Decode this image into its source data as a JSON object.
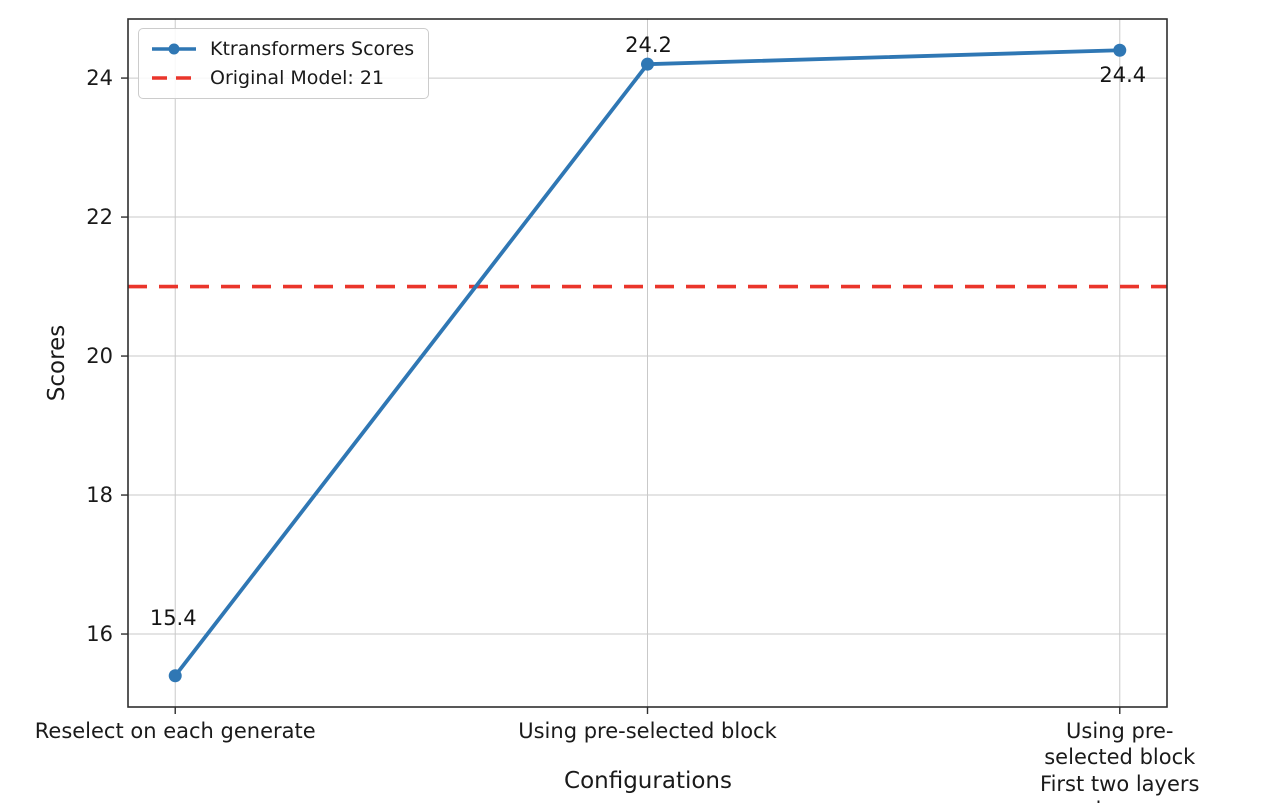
{
  "chart_data": {
    "type": "line",
    "xlabel": "Configurations",
    "ylabel": "Scores",
    "categories": [
      "Reselect on each generate",
      "Using pre-selected block",
      "Using pre-selected block\nFirst two layers dense"
    ],
    "series": [
      {
        "name": "Ktransformers Scores",
        "values": [
          15.4,
          24.2,
          24.4
        ],
        "color": "#2f77b4",
        "marker": "circle",
        "line_style": "solid"
      }
    ],
    "reference_line": {
      "label": "Original Model: 21",
      "value": 21,
      "color": "#ea352b",
      "line_style": "dashed"
    },
    "point_labels": [
      "15.4",
      "24.2",
      "24.4"
    ],
    "yticks": [
      16,
      18,
      20,
      22,
      24
    ],
    "ylim": [
      14.95,
      24.85
    ],
    "xlim": [
      -0.1,
      2.1
    ],
    "grid": true,
    "grid_color": "#c9c9c9",
    "spine_color": "#2f2f2f",
    "legend_position": "upper left"
  }
}
